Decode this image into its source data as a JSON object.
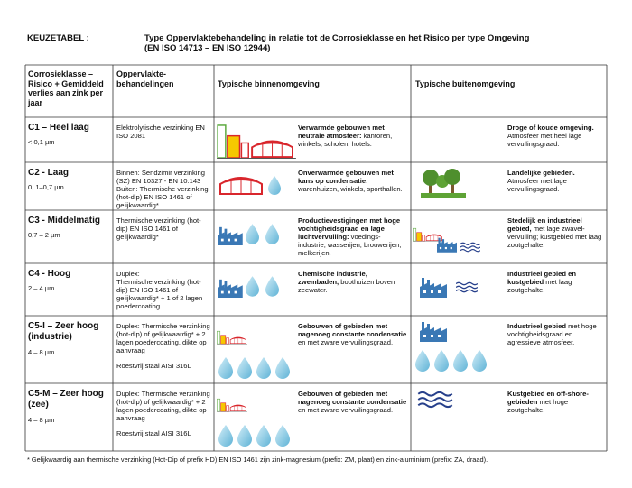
{
  "header": {
    "label": "KEUZETABEL :",
    "title": "Type Oppervlaktebehandeling in relatie tot de Corrosieklasse en het Risico per type Omgeving",
    "subtitle": "(EN ISO 14713 – EN ISO 12944)"
  },
  "table": {
    "columns": [
      "Corrosieklasse – Risico + Gemiddeld verlies aan zink per jaar",
      "Oppervlakte-behandelingen",
      "Typische binnenomgeving",
      "Typische buitenomgeving"
    ],
    "rows": [
      {
        "class": "C1 – Heel laag",
        "loss": "< 0,1 µm",
        "treatment": [
          "Elektrolytische verzinking EN ISO 2081"
        ],
        "indoor": {
          "bold": "Verwarmde gebouwen met neutrale atmosfeer:",
          "text": " kantoren, winkels, scholen, hotels."
        },
        "outdoor": {
          "bold": "Droge of koude omgeving.",
          "text": " Atmosfeer met heel lage vervuilingsgraad."
        }
      },
      {
        "class": "C2 - Laag",
        "loss": "0, 1–0,7 µm",
        "treatment": [
          "Binnen: Sendzimir verzinking (SZ) EN 10327 - EN 10.143 Buiten: Thermische verzinking (hot-dip) EN ISO 1461 of gelijkwaardig*"
        ],
        "indoor": {
          "bold": "Onverwarmde gebouwen met kans op condensatie:",
          "text": " warenhuizen, winkels, sporthallen."
        },
        "outdoor": {
          "bold": "Landelijke gebieden.",
          "text": " Atmosfeer met lage vervuilingsgraad."
        }
      },
      {
        "class": "C3 - Middelmatig",
        "loss": "0,7 – 2 µm",
        "treatment": [
          "Thermische verzinking (hot-dip) EN ISO 1461 of gelijkwaardig*"
        ],
        "indoor": {
          "bold": "Productievestigingen met hoge vochtigheidsgraad en lage luchtvervuiling:",
          "text": " voedings-industrie, wasserijen, brouwerijen, melkerijen."
        },
        "outdoor": {
          "bold": "Stedelijk en industrieel gebied,",
          "text": " met lage zwavel-vervuiling; kustgebied met laag zoutgehalte."
        }
      },
      {
        "class": "C4 - Hoog",
        "loss": "2 – 4 µm",
        "treatment": [
          "Duplex:",
          "Thermische verzinking (hot-dip) EN ISO 1461 of gelijkwaardig* + 1 of 2 lagen poedercoating"
        ],
        "indoor": {
          "bold": "Chemische industrie, zwembaden,",
          "text": " boothuizen boven zeewater."
        },
        "outdoor": {
          "bold": "Industrieel gebied en kustgebied",
          "text": " met laag zoutgehalte."
        }
      },
      {
        "class": "C5-I – Zeer hoog (industrie)",
        "loss": "4 – 8 µm",
        "treatment": [
          "Duplex: Thermische verzinking (hot-dip) of gelijkwaardig* + 2 lagen poedercoating, dikte op aanvraag",
          "Roestvrij staal AISI 316L"
        ],
        "indoor": {
          "bold": "Gebouwen of gebieden met nagenoeg constante condensatie",
          "text": " en met zware vervuilingsgraad."
        },
        "outdoor": {
          "bold": "Industrieel gebied",
          "text": " met hoge vochtigheidsgraad en agressieve atmosfeer."
        }
      },
      {
        "class": "C5-M – Zeer hoog (zee)",
        "loss": "4 – 8 µm",
        "treatment": [
          "Duplex: Thermische verzinking (hot-dip) of gelijkwaardig* + 2 lagen poedercoating, dikte op aanvraag",
          "Roestvrij staal AISI 316L"
        ],
        "indoor": {
          "bold": "Gebouwen of gebieden met nagenoeg constante condensatie",
          "text": " en met zware vervuilingsgraad."
        },
        "outdoor": {
          "bold": "Kustgebied en off-shore-gebieden",
          "text": " met hoge zoutgehalte."
        }
      }
    ]
  },
  "footnote": "* Gelijkwaardig aan thermische verzinking (Hot-Dip of prefix HD) EN ISO 1461 zijn zink-magnesium (prefix: ZM, plaat) en zink-aluminium (prefix: ZA, draad)."
}
